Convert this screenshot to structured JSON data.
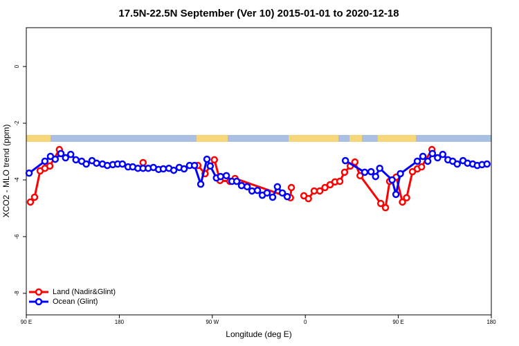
{
  "chart_data": {
    "type": "line",
    "title": "17.5N-22.5N September (Ver 10)   2015-01-01 to 2020-12-18",
    "x_label": "Longitude (deg E)",
    "y_label": "XCO2 - MLO trend (ppm)",
    "xlim": [
      90,
      540
    ],
    "ylim": [
      -8.76,
      1.37
    ],
    "xticks": [
      {
        "value": 90,
        "label": "90 E"
      },
      {
        "value": 180,
        "label": "180"
      },
      {
        "value": 270,
        "label": "90 W"
      },
      {
        "value": 360,
        "label": "0"
      },
      {
        "value": 450,
        "label": "90 E"
      },
      {
        "value": 540,
        "label": "180"
      }
    ],
    "yticks": [
      0,
      -2,
      -4,
      -6,
      -8
    ],
    "legend": "bottom-left",
    "series": [
      {
        "name": "Land (Nadir&Glint)",
        "color": "#ff0000",
        "x": [
          94,
          98,
          103.4,
          108,
          112.8,
          122,
          null,
          203,
          null,
          256,
          263,
          272,
          277.5,
          287,
          292,
          345.6,
          346.5,
          null,
          358.6,
          363,
          368.6,
          374,
          379,
          384,
          388.7,
          393.4,
          398,
          403.5,
          408,
          413,
          433,
          437.6,
          441.6,
          448,
          454,
          458,
          463.7,
          468.4,
          472.5,
          482.5
        ],
        "values": [
          -4.78,
          -4.61,
          -3.68,
          -3.59,
          -3.51,
          -2.93,
          null,
          -3.39,
          null,
          -3.49,
          -3.78,
          -3.29,
          -4.02,
          -4.05,
          -3.95,
          -4.63,
          -4.27,
          null,
          -4.56,
          -4.66,
          -4.39,
          -4.39,
          -4.27,
          -4.17,
          -4.07,
          -4.05,
          -3.73,
          -3.51,
          -3.37,
          -3.85,
          -4.83,
          -4.98,
          -4.05,
          -3.9,
          -4.78,
          -4.63,
          -3.71,
          -3.61,
          -3.54,
          -2.93
        ]
      },
      {
        "name": "Ocean (Glint)",
        "color": "#0000ff",
        "x": [
          92.7,
          108,
          113.4,
          118,
          123.5,
          128,
          133,
          138,
          143.6,
          148,
          153.6,
          158,
          163.7,
          168.4,
          173.7,
          178.4,
          183,
          188.5,
          193,
          198,
          203,
          208,
          213,
          218,
          222.6,
          228,
          232.7,
          238,
          242.7,
          248,
          252.8,
          258.8,
          264.8,
          268,
          274,
          278,
          283.6,
          289,
          293.6,
          298.3,
          303.7,
          308.4,
          313.7,
          318.4,
          323,
          328.4,
          333,
          337.8,
          342.5,
          null,
          398.8,
          417.5,
          423.6,
          428,
          432,
          444,
          447.7,
          452,
          468.4,
          473.8,
          478.5,
          483,
          488,
          493,
          498,
          502.6,
          507,
          512.6,
          517,
          522,
          526.4,
          531,
          535.8
        ],
        "values": [
          -3.76,
          -3.34,
          -3.17,
          -3.27,
          -3.07,
          -3.22,
          -3.1,
          -3.29,
          -3.34,
          -3.44,
          -3.32,
          -3.41,
          -3.44,
          -3.49,
          -3.46,
          -3.44,
          -3.44,
          -3.54,
          -3.54,
          -3.59,
          -3.59,
          -3.59,
          -3.56,
          -3.63,
          -3.61,
          -3.59,
          -3.66,
          -3.56,
          -3.61,
          -3.49,
          -3.49,
          -4.15,
          -3.27,
          -3.51,
          -3.93,
          -3.88,
          -3.85,
          -4.05,
          -4.05,
          -4.2,
          -4.24,
          -4.39,
          -4.37,
          -4.54,
          -4.46,
          -4.61,
          -4.24,
          -4.46,
          -4.59,
          null,
          -3.32,
          -3.73,
          -3.71,
          -3.88,
          -3.59,
          -4,
          -4.51,
          -3.78,
          -3.34,
          -3.17,
          -3.34,
          -3.07,
          -3.22,
          -3.1,
          -3.29,
          -3.34,
          -3.44,
          -3.32,
          -3.41,
          -3.44,
          -3.49,
          -3.46,
          -3.44
        ]
      }
    ]
  }
}
